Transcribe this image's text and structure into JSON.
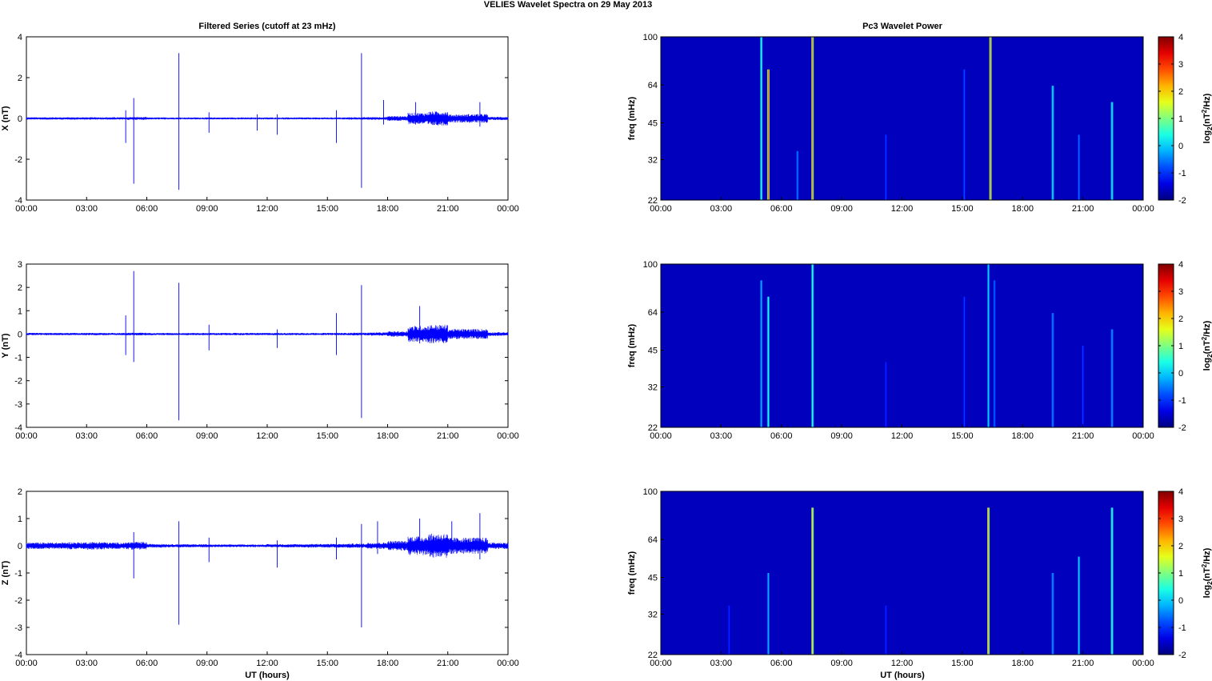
{
  "figure_title": "VELIES Wavelet Spectra on 29 May      2013",
  "left_title": "Filtered Series (cutoff at 23 mHz)",
  "right_title": "Pc3 Wavelet Power",
  "xlabel": "UT (hours)",
  "chart_data": [
    {
      "type": "line",
      "title": "Filtered Series (cutoff at 23 mHz)",
      "ylabel": "X (nT)",
      "xlim": [
        0,
        24
      ],
      "ylim": [
        -4,
        4
      ],
      "yticks": [
        -4,
        -2,
        0,
        2,
        4
      ],
      "xticks": [
        "00:00",
        "03:00",
        "06:00",
        "09:00",
        "12:00",
        "15:00",
        "18:00",
        "21:00",
        "00:00"
      ],
      "series": [
        {
          "color": "#0000ff",
          "noise_by_hour": [
            0.06,
            0.06,
            0.06,
            0.06,
            0.06,
            0.07,
            0.05,
            0.05,
            0.05,
            0.05,
            0.05,
            0.05,
            0.05,
            0.05,
            0.05,
            0.05,
            0.06,
            0.07,
            0.12,
            0.28,
            0.35,
            0.2,
            0.22,
            0.08
          ],
          "spikes": [
            [
              4.95,
              0.4,
              -1.2
            ],
            [
              5.35,
              1.0,
              -3.2
            ],
            [
              7.6,
              3.2,
              -3.5
            ],
            [
              9.1,
              0.3,
              -0.7
            ],
            [
              11.5,
              0.2,
              -0.6
            ],
            [
              12.5,
              0.2,
              -0.8
            ],
            [
              15.45,
              0.4,
              -1.2
            ],
            [
              16.7,
              3.2,
              -3.4
            ],
            [
              17.8,
              0.9,
              -0.3
            ],
            [
              19.4,
              0.8,
              -0.3
            ],
            [
              22.6,
              0.8,
              -0.4
            ]
          ]
        }
      ]
    },
    {
      "type": "line",
      "ylabel": "Y (nT)",
      "xlim": [
        0,
        24
      ],
      "ylim": [
        -4,
        3
      ],
      "yticks": [
        -4,
        -3,
        -2,
        -1,
        0,
        1,
        2,
        3
      ],
      "xticks": [
        "00:00",
        "03:00",
        "06:00",
        "09:00",
        "12:00",
        "15:00",
        "18:00",
        "21:00",
        "00:00"
      ],
      "series": [
        {
          "color": "#0000ff",
          "noise_by_hour": [
            0.05,
            0.05,
            0.05,
            0.05,
            0.05,
            0.06,
            0.05,
            0.05,
            0.05,
            0.05,
            0.05,
            0.05,
            0.05,
            0.05,
            0.05,
            0.05,
            0.06,
            0.07,
            0.12,
            0.35,
            0.4,
            0.22,
            0.22,
            0.08
          ],
          "spikes": [
            [
              4.95,
              0.8,
              -0.9
            ],
            [
              5.35,
              2.7,
              -1.2
            ],
            [
              7.6,
              2.2,
              -3.7
            ],
            [
              9.1,
              0.4,
              -0.7
            ],
            [
              12.5,
              0.2,
              -0.6
            ],
            [
              15.45,
              0.9,
              -0.9
            ],
            [
              16.7,
              2.1,
              -3.6
            ],
            [
              19.6,
              1.2,
              -0.4
            ]
          ]
        }
      ]
    },
    {
      "type": "line",
      "ylabel": "Z (nT)",
      "xlim": [
        0,
        24
      ],
      "ylim": [
        -4,
        2
      ],
      "yticks": [
        -4,
        -3,
        -2,
        -1,
        0,
        1,
        2
      ],
      "xticks": [
        "00:00",
        "03:00",
        "06:00",
        "09:00",
        "12:00",
        "15:00",
        "18:00",
        "21:00",
        "00:00"
      ],
      "series": [
        {
          "color": "#0000ff",
          "noise_by_hour": [
            0.12,
            0.12,
            0.13,
            0.14,
            0.12,
            0.14,
            0.07,
            0.06,
            0.06,
            0.05,
            0.05,
            0.05,
            0.06,
            0.06,
            0.07,
            0.07,
            0.08,
            0.12,
            0.18,
            0.35,
            0.45,
            0.3,
            0.3,
            0.12
          ],
          "spikes": [
            [
              5.35,
              0.5,
              -1.2
            ],
            [
              7.6,
              0.9,
              -2.9
            ],
            [
              9.1,
              0.3,
              -0.6
            ],
            [
              12.5,
              0.2,
              -0.8
            ],
            [
              15.45,
              0.3,
              -0.5
            ],
            [
              16.7,
              0.8,
              -3.0
            ],
            [
              17.5,
              0.9,
              -0.3
            ],
            [
              19.6,
              1.0,
              -0.3
            ],
            [
              21.2,
              0.9,
              -0.3
            ],
            [
              22.6,
              1.2,
              -0.5
            ]
          ]
        }
      ]
    },
    {
      "type": "heatmap",
      "title": "Pc3 Wavelet Power",
      "ylabel": "freq (mHz)",
      "yticks": [
        22,
        32,
        45,
        64,
        100
      ],
      "ylim": [
        22,
        100
      ],
      "xlim": [
        0,
        24
      ],
      "xticks": [
        "00:00",
        "03:00",
        "06:00",
        "09:00",
        "12:00",
        "15:00",
        "18:00",
        "21:00",
        "00:00"
      ],
      "colorbar": {
        "label_base": "log",
        "label_sub": "2",
        "label_unit": "(nT",
        "label_sup": "2",
        "label_tail": "/Hz)",
        "ticks": [
          -2,
          -1,
          0,
          1,
          2,
          3,
          4
        ],
        "range": [
          -2,
          4
        ]
      },
      "events": [
        [
          5.0,
          0.5,
          1.0
        ],
        [
          5.35,
          2.6,
          0.8
        ],
        [
          6.8,
          -0.5,
          0.3
        ],
        [
          7.55,
          2.4,
          1.0
        ],
        [
          11.2,
          -0.9,
          0.4
        ],
        [
          15.1,
          -0.8,
          0.8
        ],
        [
          16.4,
          2.3,
          1.0
        ],
        [
          19.5,
          0.2,
          0.7
        ],
        [
          20.8,
          -0.6,
          0.4
        ],
        [
          22.45,
          0.4,
          0.6
        ]
      ]
    },
    {
      "type": "heatmap",
      "ylabel": "freq (mHz)",
      "yticks": [
        22,
        32,
        45,
        64,
        100
      ],
      "ylim": [
        22,
        100
      ],
      "xlim": [
        0,
        24
      ],
      "xticks": [
        "00:00",
        "03:00",
        "06:00",
        "09:00",
        "12:00",
        "15:00",
        "18:00",
        "21:00",
        "00:00"
      ],
      "colorbar": {
        "label_base": "log",
        "label_sub": "2",
        "label_unit": "(nT",
        "label_sup": "2",
        "label_tail": "/Hz)",
        "ticks": [
          -2,
          -1,
          0,
          1,
          2,
          3,
          4
        ],
        "range": [
          -2,
          4
        ]
      },
      "events": [
        [
          5.0,
          -0.2,
          0.9
        ],
        [
          5.35,
          0.4,
          0.8
        ],
        [
          7.55,
          0.6,
          1.0
        ],
        [
          11.2,
          -1.0,
          0.4
        ],
        [
          15.1,
          -0.9,
          0.8
        ],
        [
          16.3,
          0.0,
          1.0
        ],
        [
          16.6,
          -0.6,
          0.9
        ],
        [
          19.5,
          -0.4,
          0.7
        ],
        [
          21.0,
          -0.9,
          0.5
        ],
        [
          22.45,
          -0.3,
          0.6
        ]
      ]
    },
    {
      "type": "heatmap",
      "ylabel": "freq (mHz)",
      "yticks": [
        22,
        32,
        45,
        64,
        100
      ],
      "ylim": [
        22,
        100
      ],
      "xlim": [
        0,
        24
      ],
      "xticks": [
        "00:00",
        "03:00",
        "06:00",
        "09:00",
        "12:00",
        "15:00",
        "18:00",
        "21:00",
        "00:00"
      ],
      "colorbar": {
        "label_base": "log",
        "label_sub": "2",
        "label_unit": "(nT",
        "label_sup": "2",
        "label_tail": "/Hz)",
        "ticks": [
          -2,
          -1,
          0,
          1,
          2,
          3,
          4
        ],
        "range": [
          -2,
          4
        ]
      },
      "events": [
        [
          3.4,
          -1.0,
          0.3
        ],
        [
          5.35,
          -0.2,
          0.5
        ],
        [
          7.55,
          2.0,
          0.9
        ],
        [
          11.2,
          -1.0,
          0.3
        ],
        [
          16.3,
          2.2,
          0.9
        ],
        [
          19.5,
          -0.3,
          0.5
        ],
        [
          20.8,
          0.0,
          0.6
        ],
        [
          22.45,
          0.7,
          0.9
        ]
      ]
    }
  ]
}
